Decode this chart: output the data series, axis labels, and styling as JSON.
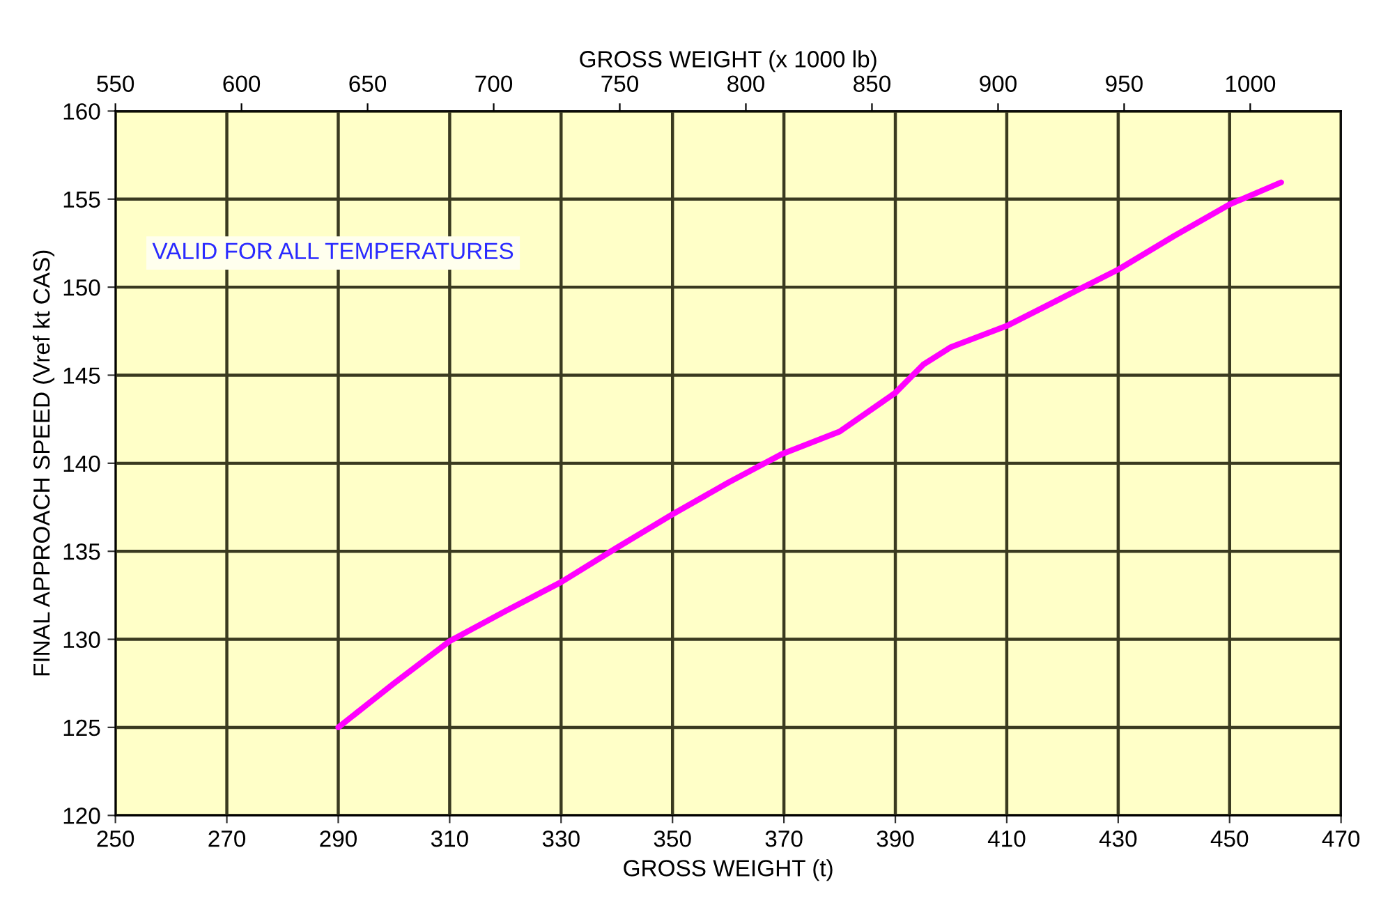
{
  "chart_data": {
    "type": "line",
    "xlabel": "GROSS WEIGHT (t)",
    "x2label": "GROSS WEIGHT (x 1000 lb)",
    "ylabel": "FINAL APPROACH SPEED (Vref kt CAS)",
    "annotations": [
      "VALID FOR ALL TEMPERATURES"
    ],
    "series": [
      {
        "color": "#ff00ff",
        "x": [
          290,
          300,
          310,
          320,
          330,
          340,
          350,
          360,
          369.5,
          380,
          390,
          395,
          400,
          410,
          420,
          430,
          440,
          450,
          459.25
        ],
        "values": [
          125,
          127.5,
          129.9,
          131.6,
          133.25,
          135.2,
          137.1,
          138.9,
          140.5,
          141.8,
          144.0,
          145.6,
          146.6,
          147.8,
          149.4,
          151.0,
          152.9,
          154.7,
          155.95
        ]
      }
    ],
    "xlim": [
      250,
      470
    ],
    "xticks": [
      250,
      270,
      290,
      310,
      330,
      350,
      370,
      390,
      410,
      430,
      450,
      470
    ],
    "ylim": [
      120,
      160
    ],
    "yticks": [
      120,
      125,
      130,
      135,
      140,
      145,
      150,
      155,
      160
    ],
    "x2lim": [
      550,
      1036
    ],
    "x2ticks": [
      550,
      600,
      650,
      700,
      750,
      800,
      850,
      900,
      950,
      1000
    ],
    "grid": true,
    "marker": "none",
    "line_style": "solid"
  }
}
